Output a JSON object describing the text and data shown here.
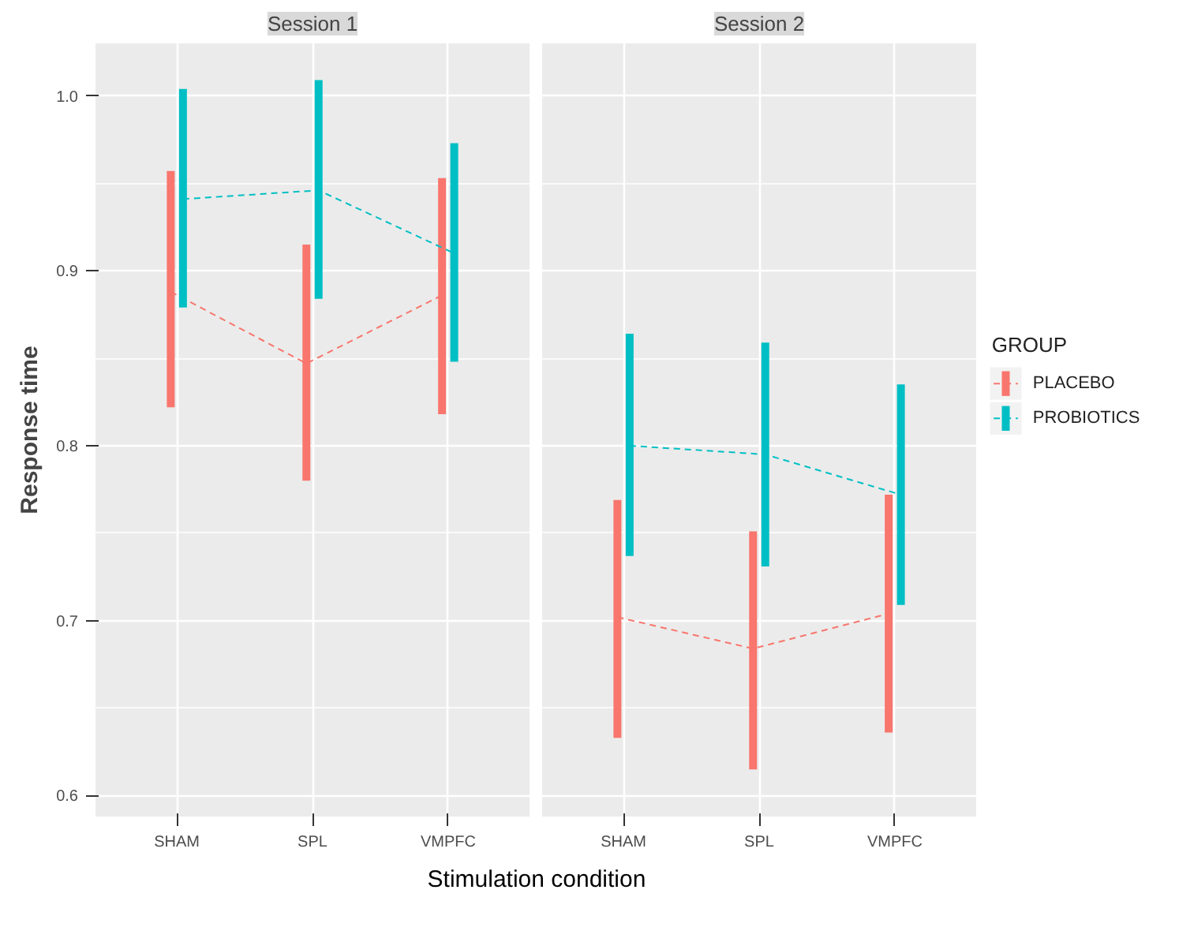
{
  "chart_data": [
    {
      "type": "line",
      "title": "Session 1",
      "xlabel": "Stimulation condition",
      "ylabel": "Response time",
      "categories": [
        "SHAM",
        "SPL",
        "VMPFC"
      ],
      "ylim": [
        0.588,
        1.03
      ],
      "yticks": [
        0.6,
        0.7,
        0.8,
        0.9,
        {
          "value": 1.0,
          "label": "1.0"
        }
      ],
      "grid": true,
      "legend": false,
      "marker": "none",
      "line_style": "dashed",
      "tick_labels": "xy",
      "series": [
        {
          "color": "#f8766d",
          "values": [
            0.888,
            0.847,
            0.886
          ],
          "errors": [
            [
              0.822,
              0.957
            ],
            [
              0.78,
              0.915
            ],
            [
              0.818,
              0.953
            ]
          ]
        },
        {
          "color": "#00bfc4",
          "values": [
            0.941,
            0.946,
            0.91
          ],
          "errors": [
            [
              0.879,
              1.004
            ],
            [
              0.884,
              1.009
            ],
            [
              0.848,
              0.973
            ]
          ]
        }
      ]
    },
    {
      "type": "line",
      "title": "Session 2",
      "categories": [
        "SHAM",
        "SPL",
        "VMPFC"
      ],
      "ylim": [
        0.588,
        1.03
      ],
      "yticks": [
        0.6,
        0.7,
        0.8,
        0.9,
        1.0
      ],
      "grid": true,
      "legend": "right",
      "legend_title": "GROUP",
      "marker": "none",
      "line_style": "dashed",
      "tick_labels": "x",
      "series": [
        {
          "name": "PLACEBO",
          "color": "#f8766d",
          "values": [
            0.702,
            0.684,
            0.704
          ],
          "errors": [
            [
              0.633,
              0.769
            ],
            [
              0.615,
              0.751
            ],
            [
              0.636,
              0.772
            ]
          ]
        },
        {
          "name": "PROBIOTICS",
          "color": "#00bfc4",
          "values": [
            0.8,
            0.795,
            0.772
          ],
          "errors": [
            [
              0.737,
              0.864
            ],
            [
              0.731,
              0.859
            ],
            [
              0.709,
              0.835
            ]
          ]
        }
      ]
    }
  ]
}
